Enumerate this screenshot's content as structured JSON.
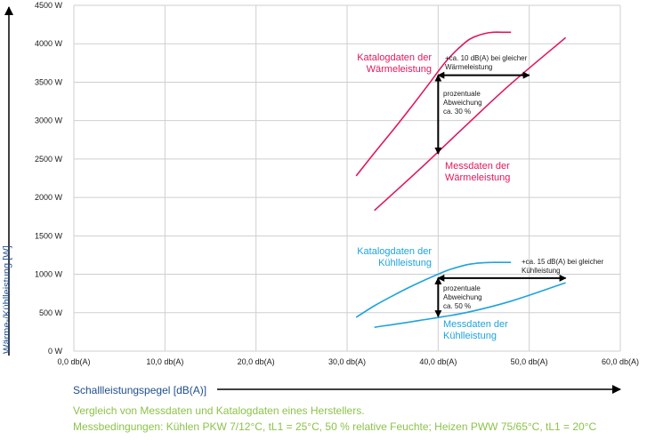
{
  "chart_data": {
    "type": "line",
    "xlabel": "Schallleistungspegel [dB(A)]",
    "ylabel": "Wärme-/Kühlleistung [W]",
    "xlim": [
      0,
      60
    ],
    "ylim": [
      0,
      4500
    ],
    "x_ticks": [
      0,
      10,
      20,
      30,
      40,
      50,
      60
    ],
    "x_tick_labels": [
      "0,0 db(A)",
      "10,0 db(A)",
      "20,0 db(A)",
      "30,0 db(A)",
      "40,0 db(A)",
      "50,0 db(A)",
      "60,0 db(A)"
    ],
    "y_ticks": [
      0,
      500,
      1000,
      1500,
      2000,
      2500,
      3000,
      3500,
      4000,
      4500
    ],
    "y_tick_labels": [
      "0 W",
      "500 W",
      "1000 W",
      "1500 W",
      "2000 W",
      "2500 W",
      "3000 W",
      "3500 W",
      "4000 W",
      "4500 W"
    ],
    "grid": true,
    "series": [
      {
        "name": "Katalogdaten der Wärmeleistung",
        "color": "#e0175c",
        "x": [
          31,
          33,
          35,
          37,
          39,
          41,
          43,
          44,
          45,
          46,
          47,
          48
        ],
        "y": [
          2280,
          2580,
          2870,
          3170,
          3480,
          3790,
          4020,
          4090,
          4130,
          4150,
          4150,
          4150
        ]
      },
      {
        "name": "Messdaten der Wärmeleistung",
        "color": "#e0175c",
        "x": [
          33,
          38,
          43,
          48,
          54
        ],
        "y": [
          1830,
          2370,
          2930,
          3480,
          4080
        ]
      },
      {
        "name": "Katalogdaten der Kühlleistung",
        "color": "#1ea3dd",
        "x": [
          31,
          33,
          35,
          37,
          39,
          41,
          43,
          44,
          45,
          46,
          47,
          48
        ],
        "y": [
          440,
          590,
          720,
          840,
          950,
          1050,
          1120,
          1140,
          1150,
          1155,
          1155,
          1155
        ]
      },
      {
        "name": "Messdaten der Kühlleistung",
        "color": "#1ea3dd",
        "x": [
          33,
          38,
          43,
          48,
          54
        ],
        "y": [
          310,
          400,
          500,
          650,
          890
        ]
      }
    ],
    "annotations": {
      "heat_catalog_label": [
        "Katalogdaten der",
        "Wärmeleistung"
      ],
      "heat_measured_label": [
        "Messdaten der",
        "Wärmeleistung"
      ],
      "cool_catalog_label": [
        "Katalogdaten der",
        "Kühlleistung"
      ],
      "cool_measured_label": [
        "Messdaten der",
        "Kühlleistung"
      ],
      "heat_horizontal_note": [
        "+ca. 10 dB(A) bei gleicher",
        "Wärmeleistung"
      ],
      "heat_vertical_note": [
        "prozentuale",
        "Abweichung",
        "ca. 30 %"
      ],
      "cool_horizontal_note": [
        "+ca. 15 dB(A) bei gleicher",
        "Kühlleistung"
      ],
      "cool_vertical_note": [
        "prozentuale",
        "Abweichung",
        "ca. 50 %"
      ]
    },
    "heat_arrows": {
      "horizontal": {
        "x_from": 40,
        "x_to": 50,
        "y": 3590
      },
      "vertical": {
        "x": 40,
        "y_from": 3590,
        "y_to": 2570
      }
    },
    "cool_arrows": {
      "horizontal": {
        "x_from": 40,
        "x_to": 54,
        "y": 950
      },
      "vertical": {
        "x": 40,
        "y_from": 950,
        "y_to": 450
      }
    }
  },
  "caption": {
    "line1": "Vergleich von Messdaten und Katalogdaten eines Herstellers.",
    "line2": "Messbedingungen: Kühlen PKW 7/12°C, tL1 = 25°C, 50 % relative Feuchte; Heizen PWW 75/65°C, tL1 = 20°C"
  }
}
